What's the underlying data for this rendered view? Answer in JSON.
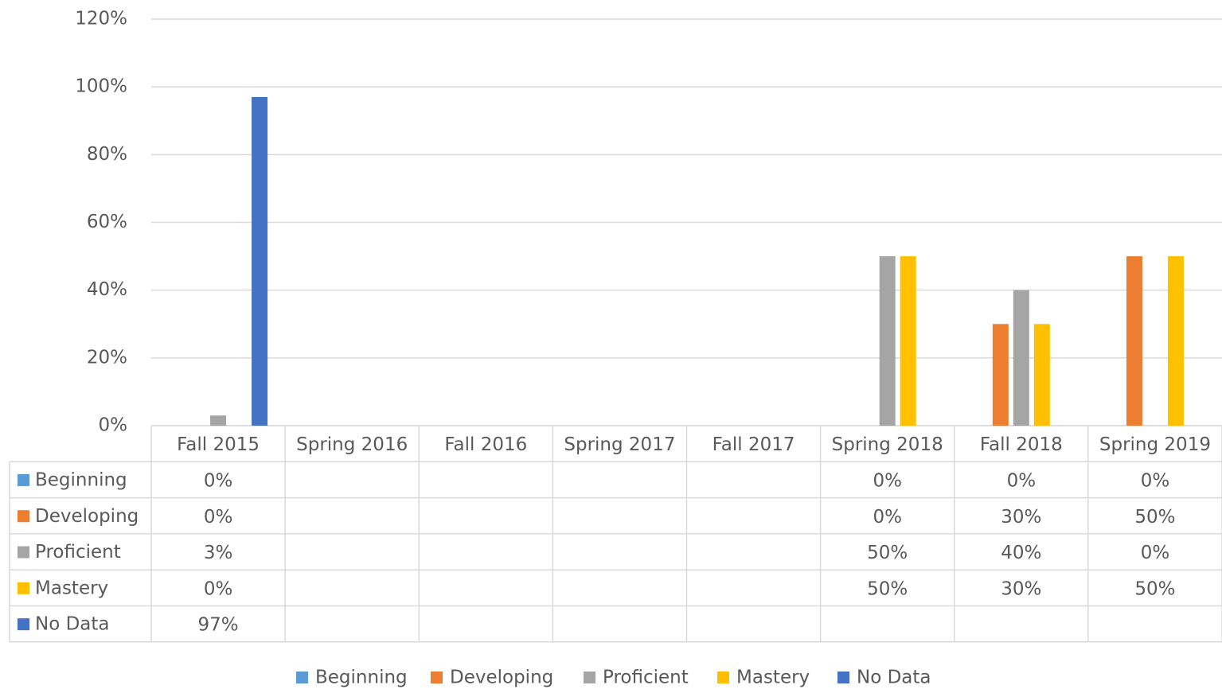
{
  "chart_data": {
    "type": "bar",
    "categories": [
      "Fall 2015",
      "Spring 2016",
      "Fall 2016",
      "Spring 2017",
      "Fall 2017",
      "Spring 2018",
      "Fall 2018",
      "Spring 2019"
    ],
    "series": [
      {
        "name": "Beginning",
        "color": "#5b9bd5",
        "values": [
          0,
          null,
          null,
          null,
          null,
          0,
          0,
          0
        ],
        "value_labels": [
          "0%",
          null,
          null,
          null,
          null,
          "0%",
          "0%",
          "0%"
        ]
      },
      {
        "name": "Developing",
        "color": "#ed7d31",
        "values": [
          0,
          null,
          null,
          null,
          null,
          0,
          30,
          50
        ],
        "value_labels": [
          "0%",
          null,
          null,
          null,
          null,
          "0%",
          "30%",
          "50%"
        ]
      },
      {
        "name": "Proficient",
        "color": "#a5a5a5",
        "values": [
          3,
          null,
          null,
          null,
          null,
          50,
          40,
          0
        ],
        "value_labels": [
          "3%",
          null,
          null,
          null,
          null,
          "50%",
          "40%",
          "0%"
        ]
      },
      {
        "name": "Mastery",
        "color": "#ffc000",
        "values": [
          0,
          null,
          null,
          null,
          null,
          50,
          30,
          50
        ],
        "value_labels": [
          "0%",
          null,
          null,
          null,
          null,
          "50%",
          "30%",
          "50%"
        ]
      },
      {
        "name": "No Data",
        "color": "#4472c4",
        "values": [
          97,
          null,
          null,
          null,
          null,
          null,
          null,
          null
        ],
        "value_labels": [
          "97%",
          null,
          null,
          null,
          null,
          null,
          null,
          null
        ]
      }
    ],
    "ylim": [
      0,
      120
    ],
    "yticks": [
      {
        "value": 0,
        "label": "0%"
      },
      {
        "value": 20,
        "label": "20%"
      },
      {
        "value": 40,
        "label": "40%"
      },
      {
        "value": 60,
        "label": "60%"
      },
      {
        "value": 80,
        "label": "80%"
      },
      {
        "value": 100,
        "label": "100%"
      },
      {
        "value": 120,
        "label": "120%"
      }
    ],
    "grid": true,
    "legend": "bottom"
  }
}
